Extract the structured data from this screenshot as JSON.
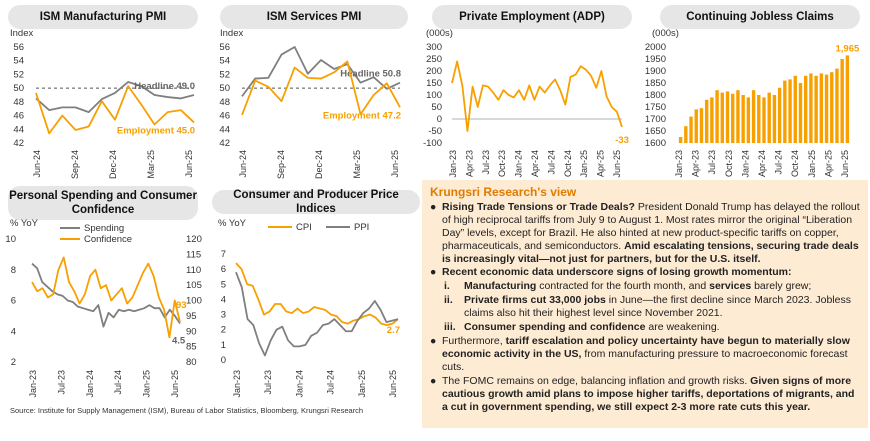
{
  "source": "Source: Institute for Supply Management (ISM), Bureau of Labor Statistics, Bloomberg, Krungsri Research",
  "colors": {
    "orange": "#f7a000",
    "gray": "#7f7f7f",
    "panel": "#fdebd3",
    "accent": "#e07b00",
    "pill": "#e6e6e6"
  },
  "chart_data": [
    {
      "type": "line",
      "title": "ISM Manufacturing PMI",
      "ylabel": "Index",
      "ylim": [
        42,
        56
      ],
      "yticks": [
        "56",
        "54",
        "52",
        "50",
        "48",
        "46",
        "44",
        "42"
      ],
      "xticks": [
        "Jun-24",
        "Sep-24",
        "Dec-24",
        "Mar-25",
        "Jun-25"
      ],
      "x": [
        "Jun-24",
        "Jul-24",
        "Aug-24",
        "Sep-24",
        "Oct-24",
        "Nov-24",
        "Dec-24",
        "Jan-25",
        "Feb-25",
        "Mar-25",
        "Apr-25",
        "May-25",
        "Jun-25"
      ],
      "reference_line": 50,
      "series": [
        {
          "name": "Headline",
          "color": "#7f7f7f",
          "values": [
            48.5,
            46.8,
            47.2,
            47.2,
            46.5,
            48.4,
            49.3,
            50.9,
            50.3,
            49.0,
            48.7,
            48.5,
            49.0
          ],
          "end_label": "Headline 49.0"
        },
        {
          "name": "Employment",
          "color": "#f7a000",
          "values": [
            49.3,
            43.4,
            46.0,
            43.9,
            44.4,
            48.1,
            45.4,
            50.3,
            47.6,
            44.7,
            46.5,
            46.8,
            45.0
          ],
          "end_label": "Employment 45.0"
        }
      ]
    },
    {
      "type": "line",
      "title": "ISM Services PMI",
      "ylabel": "Index",
      "ylim": [
        42,
        56
      ],
      "yticks": [
        "56",
        "54",
        "52",
        "50",
        "48",
        "46",
        "44",
        "42"
      ],
      "xticks": [
        "Jun-24",
        "Sep-24",
        "Dec-24",
        "Mar-25",
        "Jun-25"
      ],
      "x": [
        "Jun-24",
        "Jul-24",
        "Aug-24",
        "Sep-24",
        "Oct-24",
        "Nov-24",
        "Dec-24",
        "Jan-25",
        "Feb-25",
        "Mar-25",
        "Apr-25",
        "May-25",
        "Jun-25"
      ],
      "reference_line": 50,
      "series": [
        {
          "name": "Headline",
          "color": "#7f7f7f",
          "values": [
            48.8,
            51.4,
            51.5,
            54.9,
            56.0,
            52.1,
            54.1,
            52.8,
            53.5,
            50.8,
            51.6,
            49.9,
            50.8
          ],
          "end_label": "Headline 50.8"
        },
        {
          "name": "Employment",
          "color": "#f7a000",
          "values": [
            46.1,
            51.1,
            50.2,
            48.1,
            53.0,
            51.5,
            51.4,
            52.3,
            53.9,
            46.2,
            49.0,
            50.7,
            47.2
          ],
          "end_label": "Employment 47.2"
        }
      ]
    },
    {
      "type": "line",
      "title": "Private Employment (ADP)",
      "ylabel": "(000s)",
      "ylim": [
        -100,
        300
      ],
      "yticks": [
        "300",
        "250",
        "200",
        "150",
        "100",
        "50",
        "0",
        "-50",
        "-100"
      ],
      "xticks": [
        "Jan-23",
        "Apr-23",
        "Jul-23",
        "Oct-23",
        "Jan-24",
        "Apr-24",
        "Jul-24",
        "Oct-24",
        "Jan-25",
        "Apr-25",
        "Jun-25"
      ],
      "series": [
        {
          "name": "ADP",
          "color": "#f7a000",
          "values": [
            150,
            240,
            140,
            -50,
            135,
            50,
            140,
            135,
            110,
            80,
            120,
            100,
            90,
            120,
            80,
            140,
            80,
            135,
            110,
            140,
            165,
            120,
            60,
            175,
            185,
            220,
            205,
            180,
            130,
            200,
            95,
            50,
            30,
            -33
          ],
          "end_label": "-33"
        }
      ]
    },
    {
      "type": "bar",
      "title": "Continuing Jobless Claims",
      "ylabel": "(000s)",
      "ylim": [
        1600,
        2000
      ],
      "yticks": [
        "2000",
        "1950",
        "1900",
        "1850",
        "1800",
        "1750",
        "1700",
        "1650",
        "1600"
      ],
      "xticks": [
        "Jan-23",
        "Apr-23",
        "Jul-23",
        "Oct-23",
        "Jan-24",
        "Apr-24",
        "Jul-24",
        "Oct-24",
        "Jan-25",
        "Apr-25",
        "Jun-25"
      ],
      "color": "#f7a000",
      "values": [
        1625,
        1670,
        1710,
        1740,
        1745,
        1780,
        1790,
        1820,
        1810,
        1815,
        1805,
        1820,
        1800,
        1790,
        1820,
        1800,
        1790,
        1810,
        1800,
        1830,
        1860,
        1865,
        1880,
        1850,
        1880,
        1890,
        1880,
        1890,
        1885,
        1895,
        1910,
        1950,
        1965
      ],
      "end_label": "1,965"
    },
    {
      "type": "line",
      "title": "Personal Spending and Consumer Confidence",
      "ylabel": "% YoY",
      "ylim": [
        2,
        10
      ],
      "yticks": [
        "10",
        "8",
        "6",
        "4",
        "2"
      ],
      "y2lim": [
        80,
        120
      ],
      "y2ticks": [
        "120",
        "115",
        "110",
        "105",
        "100",
        "95",
        "90",
        "85",
        "80"
      ],
      "xticks": [
        "Jan-23",
        "Jul-23",
        "Jan-24",
        "Jul-24",
        "Jan-25",
        "Jun-25"
      ],
      "series": [
        {
          "name": "Spending",
          "color": "#7f7f7f",
          "axis": "left",
          "values": [
            8.4,
            8.1,
            7.2,
            6.9,
            6.6,
            6.4,
            6.3,
            6.0,
            5.9,
            5.6,
            5.5,
            5.4,
            5.3,
            5.7,
            4.3,
            5.2,
            4.9,
            5.4,
            5.3,
            5.4,
            5.3,
            5.4,
            5.5,
            5.7,
            5.5,
            5.5,
            4.9,
            5.4,
            5.0,
            4.5
          ],
          "end_label": "4.5"
        },
        {
          "name": "Confidence",
          "color": "#f7a000",
          "axis": "right",
          "values": [
            106,
            103,
            104,
            101,
            102,
            110,
            114,
            106,
            103,
            99,
            102,
            108,
            110,
            104,
            105,
            100,
            102,
            104,
            99,
            101,
            105,
            109,
            112,
            108,
            101,
            97,
            88,
            100,
            93
          ],
          "end_label": "93"
        }
      ]
    },
    {
      "type": "line",
      "title": "Consumer and Producer Price Indices",
      "ylabel": "% YoY",
      "ylim": [
        0,
        7
      ],
      "yticks": [
        "7",
        "6",
        "5",
        "4",
        "3",
        "2",
        "1",
        "0"
      ],
      "xticks": [
        "Jan-23",
        "Jul-23",
        "Jan-24",
        "Jul-24",
        "Jan-25",
        "Jun-25"
      ],
      "series": [
        {
          "name": "CPI",
          "color": "#f7a000",
          "values": [
            6.4,
            6.0,
            5.0,
            4.9,
            4.0,
            3.0,
            3.2,
            3.7,
            3.7,
            3.2,
            3.1,
            3.4,
            3.1,
            3.2,
            3.5,
            3.4,
            3.3,
            3.0,
            2.9,
            2.5,
            2.4,
            2.6,
            2.7,
            2.9,
            3.0,
            2.8,
            2.4,
            2.3,
            2.4,
            2.7
          ],
          "end_label": "2.7"
        },
        {
          "name": "PPI",
          "color": "#7f7f7f",
          "values": [
            5.8,
            4.8,
            2.7,
            2.3,
            1.1,
            0.3,
            1.3,
            2.0,
            2.2,
            1.3,
            0.9,
            0.9,
            1.0,
            1.6,
            1.8,
            2.3,
            2.4,
            2.7,
            2.3,
            1.9,
            1.9,
            2.6,
            3.1,
            3.4,
            3.9,
            3.3,
            2.5,
            2.6,
            2.7
          ],
          "end_label": ""
        }
      ]
    }
  ],
  "view": {
    "title": "Krungsri Research's view",
    "bullets": [
      {
        "lead": "Rising Trade Tensions or Trade Deals?",
        "body": " President Donald Trump has delayed the rollout of high reciprocal tariffs from July 9 to August 1. Most rates mirror the original “Liberation Day” levels, except for Brazil. He also hinted at new product-specific tariffs on copper, pharmaceuticals, and semiconductors. ",
        "tail": "Amid escalating tensions, securing trade deals is increasingly vital—not just for partners, but for the U.S. itself."
      },
      {
        "lead": "Recent economic data underscore signs of losing growth momentum:",
        "body": "",
        "tail": ""
      }
    ],
    "subs": [
      {
        "num": "i.",
        "a": "Manufacturing",
        "b": " contracted for the fourth month, and ",
        "c": "services",
        "d": " barely grew;"
      },
      {
        "num": "ii.",
        "a": "Private firms cut 33,000 jobs",
        "b": " in June—the first decline since March 2023. Jobless claims also hit their highest level since November 2021.",
        "c": "",
        "d": ""
      },
      {
        "num": "iii.",
        "a": "Consumer spending and confidence",
        "b": " are weakening.",
        "c": "",
        "d": ""
      }
    ],
    "bullets2": [
      {
        "body": "Furthermore, ",
        "lead": "tariff escalation and policy uncertainty have begun to materially slow economic activity in the US,",
        "tail": " from manufacturing pressure to macroeconomic forecast cuts."
      },
      {
        "body": "The FOMC remains on edge, balancing inflation and growth risks. ",
        "lead": "Given signs of more cautious growth amid plans to impose higher tariffs, deportations of migrants, and a cut in government spending, we still expect 2-3 more rate cuts this year.",
        "tail": ""
      }
    ]
  }
}
